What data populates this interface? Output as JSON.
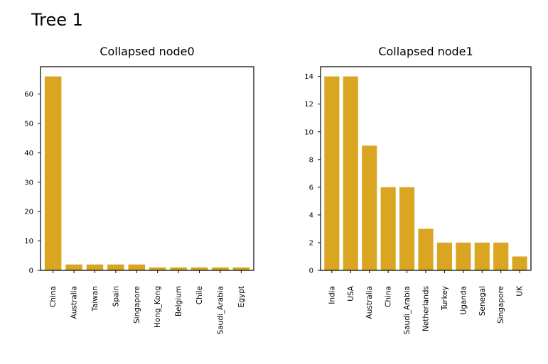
{
  "figure": {
    "title": "Tree 1"
  },
  "colors": {
    "bar": "#DAA520",
    "axis": "#000000"
  },
  "chart_data": [
    {
      "type": "bar",
      "title": "Collapsed node0",
      "xlabel": "",
      "ylabel": "",
      "categories": [
        "China",
        "Australia",
        "Taiwan",
        "Spain",
        "Singapore",
        "Hong_Kong",
        "Belgium",
        "Chile",
        "Saudi_Arabia",
        "Egypt"
      ],
      "values": [
        66,
        2,
        2,
        2,
        2,
        1,
        1,
        1,
        1,
        1
      ],
      "ylim": [
        0,
        69.3
      ],
      "yticks": [
        0,
        10,
        20,
        30,
        40,
        50,
        60
      ],
      "grid": false,
      "legend": "none"
    },
    {
      "type": "bar",
      "title": "Collapsed node1",
      "xlabel": "",
      "ylabel": "",
      "categories": [
        "India",
        "USA",
        "Australia",
        "China",
        "Saudi_Arabia",
        "Netherlands",
        "Turkey",
        "Uganda",
        "Senegal",
        "Singapore",
        "UK"
      ],
      "values": [
        14,
        14,
        9,
        6,
        6,
        3,
        2,
        2,
        2,
        2,
        1
      ],
      "ylim": [
        0,
        14.7
      ],
      "yticks": [
        0,
        2,
        4,
        6,
        8,
        10,
        12,
        14
      ],
      "grid": false,
      "legend": "none"
    }
  ]
}
